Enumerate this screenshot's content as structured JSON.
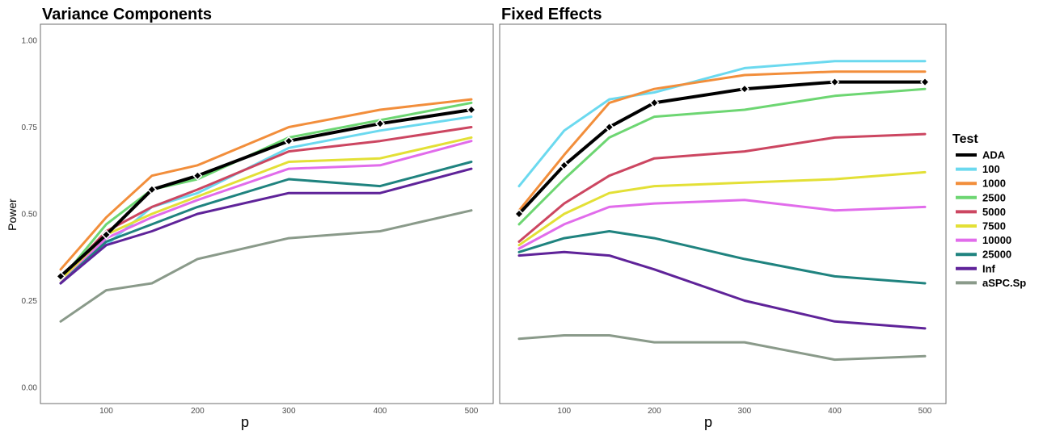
{
  "chart_data": [
    {
      "type": "line",
      "title": "Variance Components",
      "xlabel": "p",
      "ylabel": "Power",
      "xlim": [
        50,
        500
      ],
      "ylim": [
        0,
        1
      ],
      "xticks": [
        100,
        200,
        300,
        400,
        500
      ],
      "yticks": [
        0,
        0.25,
        0.5,
        0.75,
        1
      ],
      "ytick_labels": [
        "0.00",
        "0.25",
        "0.50",
        "0.75",
        "1.00"
      ],
      "x": [
        50,
        100,
        150,
        200,
        300,
        400,
        500
      ],
      "grid": false,
      "series": [
        {
          "name": "ADA",
          "color": "#000000",
          "markers": true,
          "values": [
            0.32,
            0.44,
            0.57,
            0.61,
            0.71,
            0.76,
            0.8
          ]
        },
        {
          "name": "100",
          "color": "#6BD9EF",
          "values": [
            0.3,
            0.41,
            0.52,
            0.56,
            0.69,
            0.74,
            0.78
          ]
        },
        {
          "name": "1000",
          "color": "#F28E3B",
          "values": [
            0.34,
            0.49,
            0.61,
            0.64,
            0.75,
            0.8,
            0.83
          ]
        },
        {
          "name": "2500",
          "color": "#6DD672",
          "values": [
            0.31,
            0.47,
            0.57,
            0.6,
            0.72,
            0.77,
            0.82
          ]
        },
        {
          "name": "5000",
          "color": "#CC4661",
          "values": [
            0.31,
            0.45,
            0.52,
            0.57,
            0.68,
            0.71,
            0.75
          ]
        },
        {
          "name": "7500",
          "color": "#E3E036",
          "values": [
            0.31,
            0.44,
            0.5,
            0.55,
            0.65,
            0.66,
            0.72
          ]
        },
        {
          "name": "10000",
          "color": "#E16CEB",
          "values": [
            0.3,
            0.43,
            0.49,
            0.54,
            0.63,
            0.64,
            0.71
          ]
        },
        {
          "name": "25000",
          "color": "#1F837F",
          "values": [
            0.3,
            0.42,
            0.47,
            0.52,
            0.6,
            0.58,
            0.65
          ]
        },
        {
          "name": "Inf",
          "color": "#5F2399",
          "values": [
            0.3,
            0.41,
            0.45,
            0.5,
            0.56,
            0.56,
            0.63
          ]
        },
        {
          "name": "aSPC.Sp",
          "color": "#8A9A8A",
          "values": [
            0.19,
            0.28,
            0.3,
            0.37,
            0.43,
            0.45,
            0.51
          ]
        }
      ]
    },
    {
      "type": "line",
      "title": "Fixed Effects",
      "xlabel": "p",
      "ylabel": "",
      "xlim": [
        50,
        500
      ],
      "ylim": [
        0,
        1
      ],
      "xticks": [
        100,
        200,
        300,
        400,
        500
      ],
      "x": [
        50,
        100,
        150,
        200,
        300,
        400,
        500
      ],
      "grid": false,
      "series": [
        {
          "name": "ADA",
          "color": "#000000",
          "markers": true,
          "values": [
            0.5,
            0.64,
            0.75,
            0.82,
            0.86,
            0.88,
            0.88
          ]
        },
        {
          "name": "100",
          "color": "#6BD9EF",
          "values": [
            0.58,
            0.74,
            0.83,
            0.85,
            0.92,
            0.94,
            0.94
          ]
        },
        {
          "name": "1000",
          "color": "#F28E3B",
          "values": [
            0.51,
            0.67,
            0.82,
            0.86,
            0.9,
            0.91,
            0.91
          ]
        },
        {
          "name": "2500",
          "color": "#6DD672",
          "values": [
            0.47,
            0.6,
            0.72,
            0.78,
            0.8,
            0.84,
            0.86
          ]
        },
        {
          "name": "5000",
          "color": "#CC4661",
          "values": [
            0.42,
            0.53,
            0.61,
            0.66,
            0.68,
            0.72,
            0.73
          ]
        },
        {
          "name": "7500",
          "color": "#E3E036",
          "values": [
            0.41,
            0.5,
            0.56,
            0.58,
            0.59,
            0.6,
            0.62
          ]
        },
        {
          "name": "10000",
          "color": "#E16CEB",
          "values": [
            0.4,
            0.47,
            0.52,
            0.53,
            0.54,
            0.51,
            0.52
          ]
        },
        {
          "name": "25000",
          "color": "#1F837F",
          "values": [
            0.39,
            0.43,
            0.45,
            0.43,
            0.37,
            0.32,
            0.3
          ]
        },
        {
          "name": "Inf",
          "color": "#5F2399",
          "values": [
            0.38,
            0.39,
            0.38,
            0.34,
            0.25,
            0.19,
            0.17
          ]
        },
        {
          "name": "aSPC.Sp",
          "color": "#8A9A8A",
          "values": [
            0.14,
            0.15,
            0.15,
            0.13,
            0.13,
            0.08,
            0.09
          ]
        }
      ]
    }
  ],
  "legend": {
    "title": "Test",
    "placement": "right",
    "items": [
      {
        "label": "ADA",
        "color": "#000000"
      },
      {
        "label": "100",
        "color": "#6BD9EF"
      },
      {
        "label": "1000",
        "color": "#F28E3B"
      },
      {
        "label": "2500",
        "color": "#6DD672"
      },
      {
        "label": "5000",
        "color": "#CC4661"
      },
      {
        "label": "7500",
        "color": "#E3E036"
      },
      {
        "label": "10000",
        "color": "#E16CEB"
      },
      {
        "label": "25000",
        "color": "#1F837F"
      },
      {
        "label": "Inf",
        "color": "#5F2399"
      },
      {
        "label": "aSPC.Sp",
        "color": "#8A9A8A"
      }
    ]
  }
}
